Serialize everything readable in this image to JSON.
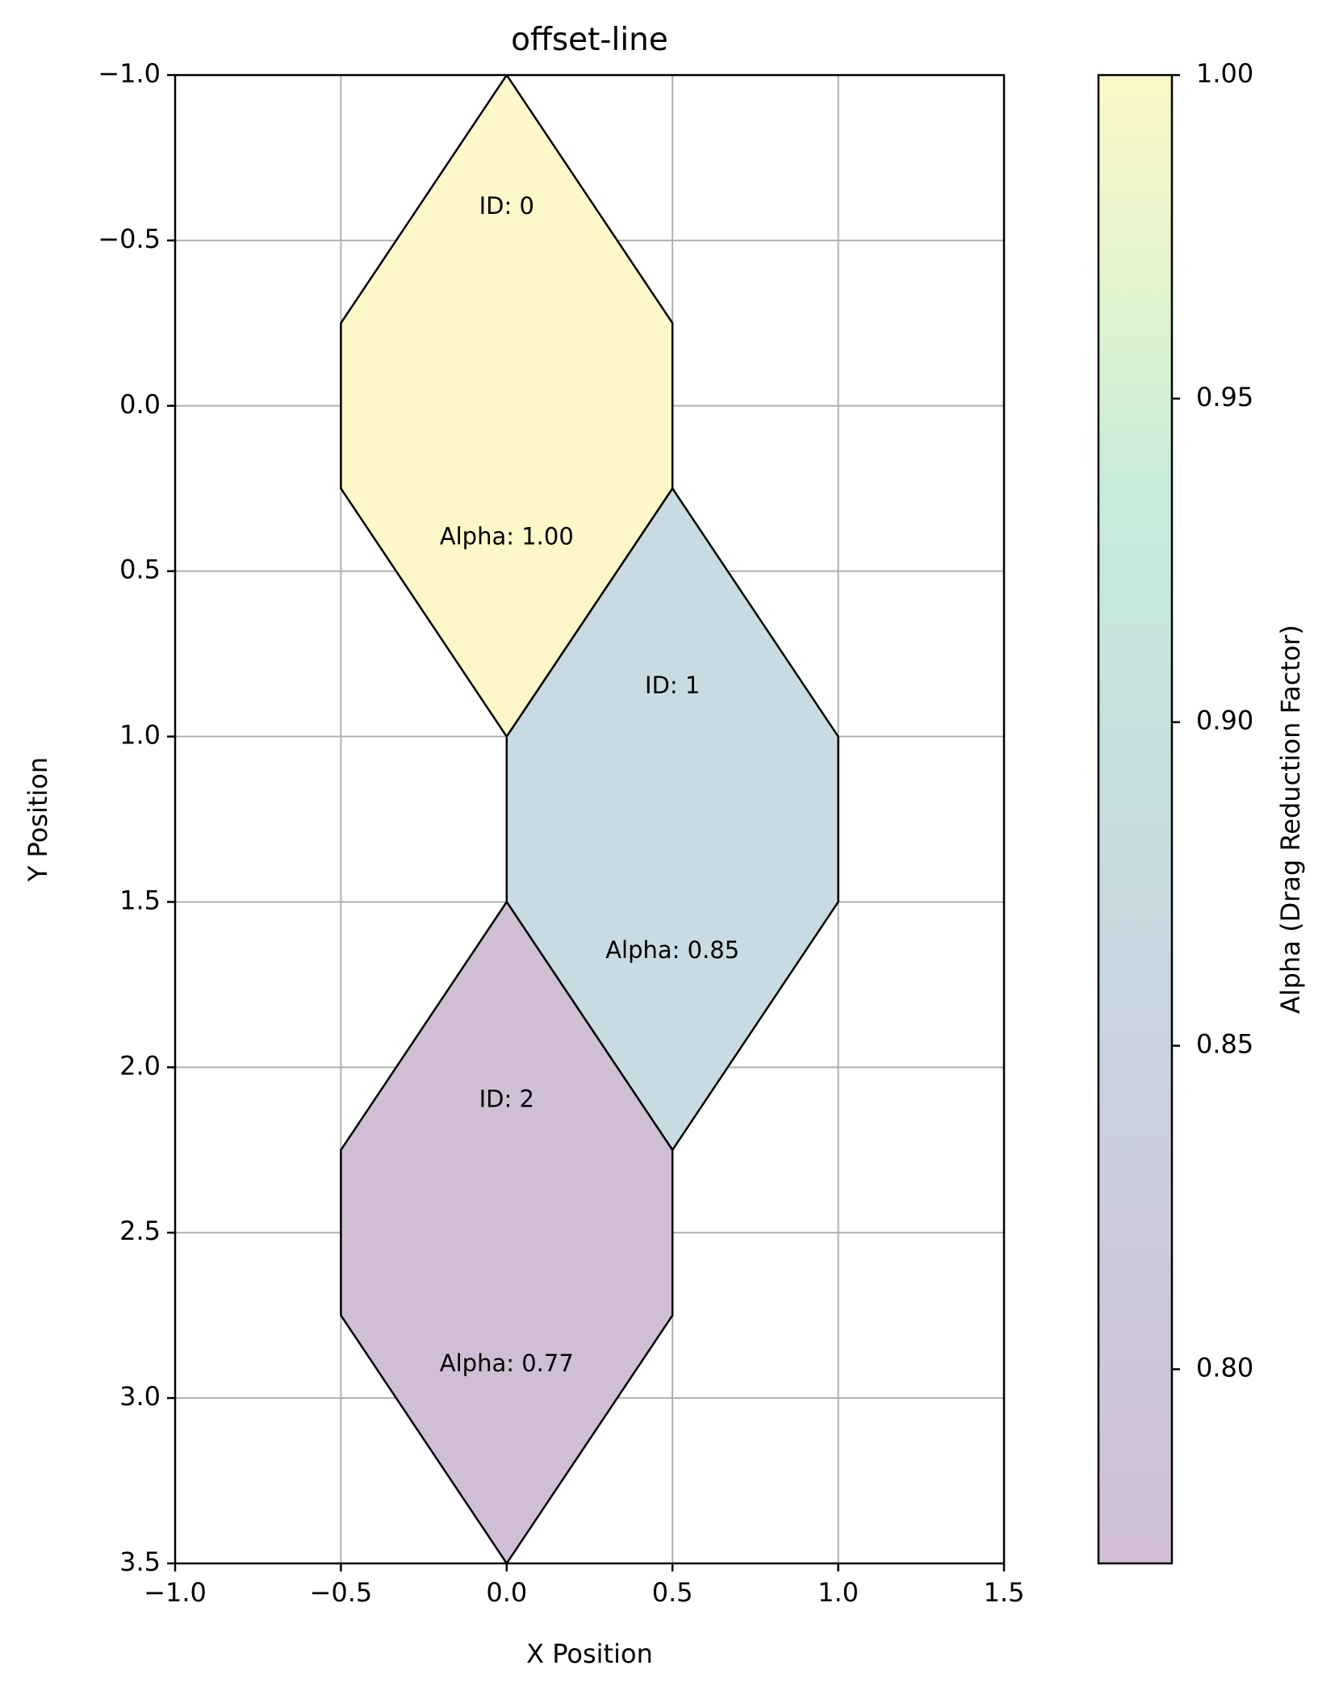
{
  "chart_data": {
    "type": "polygon",
    "title": "offset-line",
    "xlabel": "X Position",
    "ylabel": "Y Position",
    "xlim": [
      -1.0,
      1.5
    ],
    "ylim": [
      -1.0,
      3.5
    ],
    "y_inverted": true,
    "grid": true,
    "xticks": [
      -1.0,
      -0.5,
      0.0,
      0.5,
      1.0,
      1.5
    ],
    "yticks": [
      -1.0,
      -0.5,
      0.0,
      0.5,
      1.0,
      1.5,
      2.0,
      2.5,
      3.0,
      3.5
    ],
    "xtick_labels": [
      "−1.0",
      "−0.5",
      "0.0",
      "0.5",
      "1.0",
      "1.5"
    ],
    "ytick_labels": [
      "−1.0",
      "−0.5",
      "0.0",
      "0.5",
      "1.0",
      "1.5",
      "2.0",
      "2.5",
      "3.0",
      "3.5"
    ],
    "polygons": [
      {
        "id_label": "ID: 0",
        "alpha_label": "Alpha: 1.00",
        "alpha": 1.0,
        "color": "#fdf7c9",
        "vertices": [
          [
            0.0,
            -1.0
          ],
          [
            0.5,
            -0.25
          ],
          [
            0.5,
            0.25
          ],
          [
            0.0,
            1.0
          ],
          [
            -0.5,
            0.25
          ],
          [
            -0.5,
            -0.25
          ]
        ],
        "id_pos": [
          0.0,
          -0.6
        ],
        "alpha_pos": [
          0.0,
          0.4
        ]
      },
      {
        "id_label": "ID: 1",
        "alpha_label": "Alpha: 0.85",
        "alpha": 0.85,
        "color": "#c9dbe2",
        "vertices": [
          [
            0.5,
            0.25
          ],
          [
            1.0,
            1.0
          ],
          [
            1.0,
            1.5
          ],
          [
            0.5,
            2.25
          ],
          [
            0.0,
            1.5
          ],
          [
            0.0,
            1.0
          ]
        ],
        "id_pos": [
          0.5,
          0.85
        ],
        "alpha_pos": [
          0.5,
          1.65
        ]
      },
      {
        "id_label": "ID: 2",
        "alpha_label": "Alpha: 0.77",
        "alpha": 0.77,
        "color": "#d0bfd4",
        "vertices": [
          [
            0.0,
            1.5
          ],
          [
            0.5,
            2.25
          ],
          [
            0.5,
            2.75
          ],
          [
            0.0,
            3.5
          ],
          [
            -0.5,
            2.75
          ],
          [
            -0.5,
            2.25
          ]
        ],
        "id_pos": [
          0.0,
          2.1
        ],
        "alpha_pos": [
          0.0,
          2.9
        ]
      }
    ],
    "colorbar": {
      "label": "Alpha (Drag Reduction Factor)",
      "range": [
        0.77,
        1.0
      ],
      "ticks": [
        0.8,
        0.85,
        0.9,
        0.95,
        1.0
      ],
      "tick_labels": [
        "0.80",
        "0.85",
        "0.90",
        "0.95",
        "1.00"
      ],
      "colors": [
        {
          "stop": 0.0,
          "color": "#d1bfd4"
        },
        {
          "stop": 0.35,
          "color": "#c9d3df"
        },
        {
          "stop": 0.55,
          "color": "#c6e0e0"
        },
        {
          "stop": 0.72,
          "color": "#c8ebda"
        },
        {
          "stop": 0.85,
          "color": "#e0f3cf"
        },
        {
          "stop": 1.0,
          "color": "#fdf8c6"
        }
      ]
    }
  }
}
